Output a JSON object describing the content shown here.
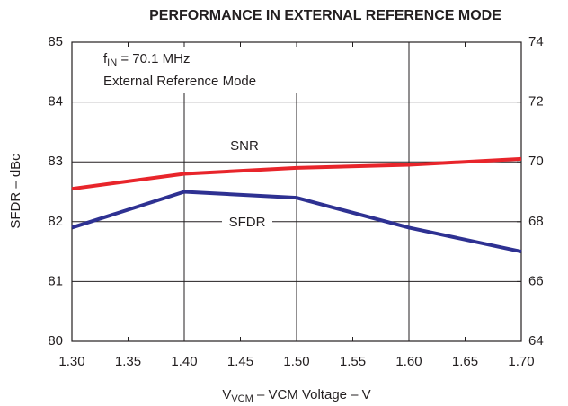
{
  "chart_data": {
    "type": "line",
    "title": "PERFORMANCE IN EXTERNAL REFERENCE MODE",
    "y_label": "SFDR – dBc",
    "x_label": {
      "main": "V",
      "sub": "VCM",
      "rest": " – VCM Voltage – V"
    },
    "annotations": [
      {
        "main": "f",
        "sub": "IN",
        "rest": " = 70.1 MHz"
      },
      "External Reference Mode"
    ],
    "x": [
      1.3,
      1.4,
      1.5,
      1.6,
      1.7
    ],
    "series": [
      {
        "name": "SNR",
        "color": "#e8252b",
        "axis": "y2",
        "values": [
          69.1,
          69.6,
          69.8,
          69.9,
          70.1
        ]
      },
      {
        "name": "SFDR",
        "color": "#2e3192",
        "axis": "y",
        "values": [
          81.9,
          82.5,
          82.4,
          81.9,
          81.5
        ]
      }
    ],
    "xlim": [
      1.3,
      1.7
    ],
    "xticks": [
      {
        "value": 1.3,
        "label": "1.30"
      },
      1.35,
      {
        "value": 1.4,
        "label": "1.40"
      },
      1.45,
      {
        "value": 1.5,
        "label": "1.50"
      },
      1.55,
      {
        "value": 1.6,
        "label": "1.60"
      },
      1.65,
      {
        "value": 1.7,
        "label": "1.70"
      }
    ],
    "ylim": [
      80,
      85
    ],
    "yticks": [
      80,
      81,
      82,
      83,
      84,
      85
    ],
    "y2lim": [
      64,
      74
    ],
    "y2ticks": [
      64,
      66,
      68,
      70,
      72,
      74
    ],
    "grid": true
  }
}
